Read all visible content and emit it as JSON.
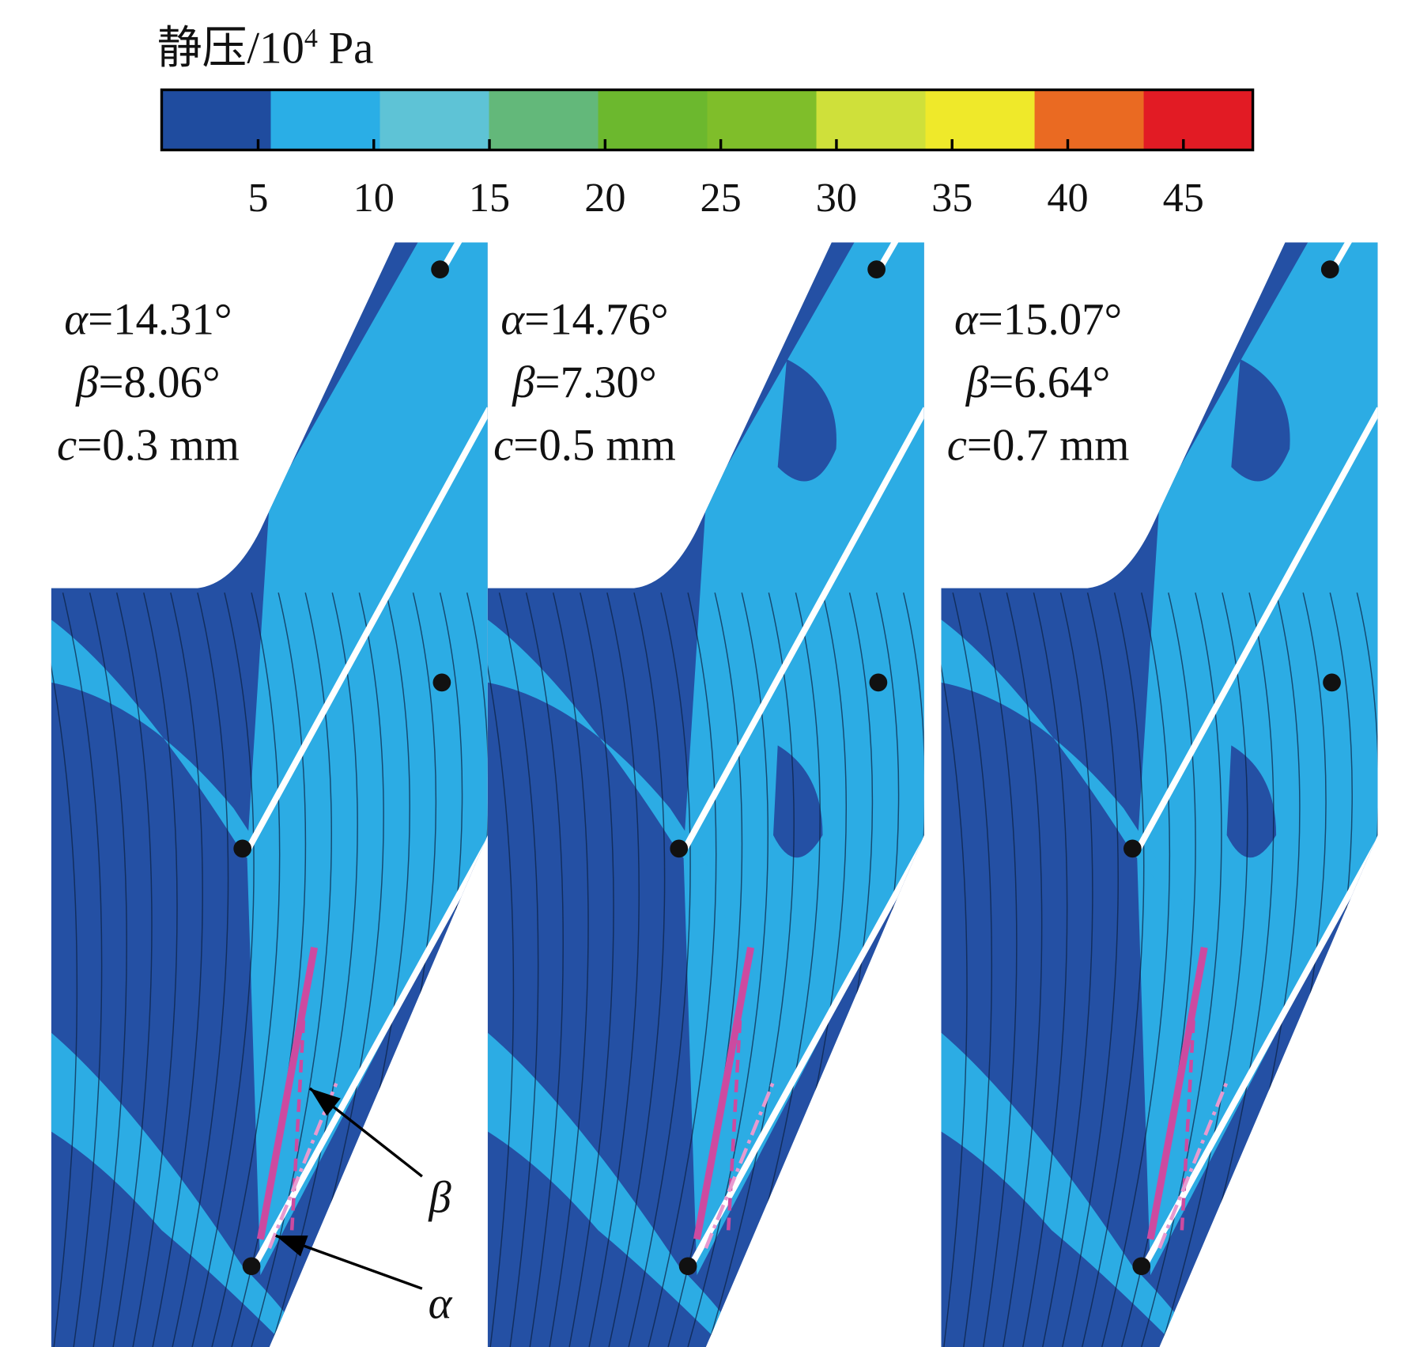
{
  "colorbar": {
    "title": {
      "main": "静压/10",
      "sup": "4",
      "unit": "Pa"
    },
    "ticks": [
      5,
      10,
      15,
      20,
      25,
      30,
      35,
      40,
      45
    ],
    "range": [
      0.83,
      48.0
    ],
    "colors": [
      "#1f4c9f",
      "#2aaee6",
      "#5ec3d6",
      "#63b87a",
      "#6cb82e",
      "#7fbe2a",
      "#cfe03a",
      "#efe92a",
      "#ea6a22",
      "#e21b24"
    ]
  },
  "symbols": {
    "alpha": "α",
    "beta": "β",
    "c": "c"
  },
  "panels": [
    {
      "alpha": "=14.31°",
      "beta": "=8.06°",
      "c": "=0.3 mm"
    },
    {
      "alpha": "=14.76°",
      "beta": "=7.30°",
      "c": "=0.5 mm"
    },
    {
      "alpha": "=15.07°",
      "beta": "=6.64°",
      "c": "=0.7 mm"
    }
  ]
}
